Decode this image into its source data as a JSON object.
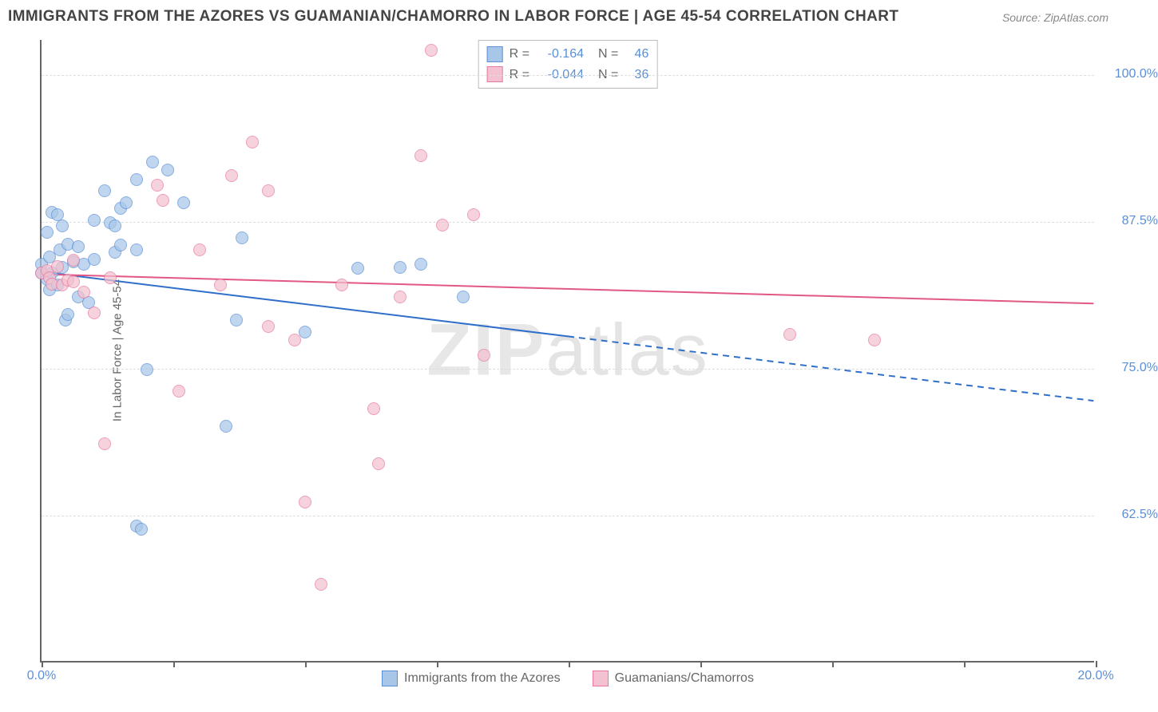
{
  "title": "IMMIGRANTS FROM THE AZORES VS GUAMANIAN/CHAMORRO IN LABOR FORCE | AGE 45-54 CORRELATION CHART",
  "source": "Source: ZipAtlas.com",
  "ylabel": "In Labor Force | Age 45-54",
  "watermark_bold": "ZIP",
  "watermark_rest": "atlas",
  "chart": {
    "type": "scatter",
    "xlim": [
      0,
      20
    ],
    "ylim": [
      50,
      103
    ],
    "x_ticks": [
      0,
      2.5,
      5,
      7.5,
      10,
      12.5,
      15,
      17.5,
      20
    ],
    "x_tick_labels": {
      "0": "0.0%",
      "20": "20.0%"
    },
    "y_gridlines": [
      62.5,
      75,
      87.5,
      100
    ],
    "y_tick_labels": {
      "62.5": "62.5%",
      "75": "75.0%",
      "87.5": "87.5%",
      "100": "100.0%"
    },
    "axis_color": "#666666",
    "grid_color": "#dddddd",
    "tick_label_color": "#5b8fd6",
    "background_color": "#ffffff"
  },
  "series": [
    {
      "name": "Immigrants from the Azores",
      "fill": "#a8c7e8",
      "stroke": "#5b8fd6",
      "opacity": 0.72,
      "marker_radius": 8,
      "R": "-0.164",
      "N": "46",
      "trend": {
        "y_at_x0": 83.2,
        "y_at_x20": 72.2,
        "solid_until_x": 10,
        "color": "#2f6fc9",
        "width": 2
      },
      "points": [
        [
          0.0,
          83.0
        ],
        [
          0.0,
          83.8
        ],
        [
          0.1,
          82.5
        ],
        [
          0.1,
          86.5
        ],
        [
          0.15,
          84.4
        ],
        [
          0.15,
          81.6
        ],
        [
          0.2,
          88.2
        ],
        [
          0.2,
          83.0
        ],
        [
          0.3,
          88.0
        ],
        [
          0.3,
          82.0
        ],
        [
          0.35,
          85.0
        ],
        [
          0.4,
          87.0
        ],
        [
          0.4,
          83.5
        ],
        [
          0.45,
          79.0
        ],
        [
          0.5,
          85.5
        ],
        [
          0.5,
          79.5
        ],
        [
          0.6,
          84.0
        ],
        [
          0.7,
          81.0
        ],
        [
          0.7,
          85.3
        ],
        [
          0.8,
          83.8
        ],
        [
          0.9,
          80.5
        ],
        [
          1.0,
          84.2
        ],
        [
          1.0,
          87.5
        ],
        [
          1.2,
          90.0
        ],
        [
          1.3,
          87.3
        ],
        [
          1.4,
          84.8
        ],
        [
          1.4,
          87.0
        ],
        [
          1.5,
          88.5
        ],
        [
          1.5,
          85.4
        ],
        [
          1.6,
          89.0
        ],
        [
          1.8,
          85.0
        ],
        [
          1.8,
          91.0
        ],
        [
          1.8,
          61.5
        ],
        [
          1.9,
          61.2
        ],
        [
          2.0,
          74.8
        ],
        [
          2.1,
          92.5
        ],
        [
          2.4,
          91.8
        ],
        [
          2.7,
          89.0
        ],
        [
          3.5,
          70.0
        ],
        [
          3.7,
          79.0
        ],
        [
          3.8,
          86.0
        ],
        [
          5.0,
          78.0
        ],
        [
          6.8,
          83.5
        ],
        [
          7.2,
          83.8
        ],
        [
          8.0,
          81.0
        ],
        [
          6.0,
          83.4
        ]
      ]
    },
    {
      "name": "Guamanians/Chamorros",
      "fill": "#f3c1cf",
      "stroke": "#e879a1",
      "opacity": 0.72,
      "marker_radius": 8,
      "R": "-0.044",
      "N": "36",
      "trend": {
        "y_at_x0": 83.0,
        "y_at_x20": 80.5,
        "solid_until_x": 20,
        "color": "#e25883",
        "width": 2
      },
      "points": [
        [
          0.0,
          83.0
        ],
        [
          0.1,
          83.2
        ],
        [
          0.15,
          82.6
        ],
        [
          0.2,
          82.1
        ],
        [
          0.3,
          83.6
        ],
        [
          0.4,
          82.0
        ],
        [
          0.5,
          82.4
        ],
        [
          0.6,
          84.1
        ],
        [
          0.6,
          82.3
        ],
        [
          0.8,
          81.4
        ],
        [
          1.0,
          79.6
        ],
        [
          1.2,
          68.5
        ],
        [
          1.3,
          82.6
        ],
        [
          2.2,
          90.5
        ],
        [
          2.3,
          89.2
        ],
        [
          2.6,
          73.0
        ],
        [
          3.0,
          85.0
        ],
        [
          3.4,
          82.0
        ],
        [
          3.6,
          91.3
        ],
        [
          4.0,
          94.2
        ],
        [
          4.3,
          90.0
        ],
        [
          4.3,
          78.5
        ],
        [
          4.8,
          77.3
        ],
        [
          5.0,
          63.5
        ],
        [
          5.3,
          56.5
        ],
        [
          5.7,
          82.0
        ],
        [
          6.3,
          71.5
        ],
        [
          6.4,
          66.8
        ],
        [
          6.8,
          81.0
        ],
        [
          7.2,
          93.0
        ],
        [
          7.4,
          102.0
        ],
        [
          7.6,
          87.1
        ],
        [
          8.2,
          88.0
        ],
        [
          8.4,
          76.0
        ],
        [
          14.2,
          77.8
        ],
        [
          15.8,
          77.3
        ]
      ]
    }
  ],
  "legend_top": {
    "R_label": "R =",
    "N_label": "N ="
  },
  "legend_bottom": [
    {
      "label": "Immigrants from the Azores",
      "series": 0
    },
    {
      "label": "Guamanians/Chamorros",
      "series": 1
    }
  ]
}
